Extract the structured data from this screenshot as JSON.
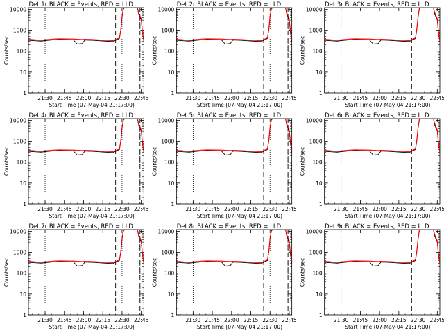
{
  "chart_data": [
    {
      "type": "line",
      "title": "Det 1r BLACK = Events, RED = LLD",
      "xlabel": "Start Time (07-May-04 21:17:00)",
      "ylabel": "Counts/sec",
      "x_ticks": [
        "21:30",
        "21:45",
        "22:00",
        "22:15",
        "22:30",
        "22:45"
      ],
      "y_ticks": [
        "1",
        "10",
        "100",
        "1000",
        "10000"
      ],
      "ylim": [
        1,
        12000
      ],
      "yscale": "log",
      "x_minutes_from_start": [
        0,
        10,
        13,
        18,
        20,
        24,
        35,
        38,
        42,
        44,
        50,
        60,
        66,
        68,
        71,
        72,
        73,
        74,
        75,
        85,
        86,
        88,
        89,
        90
      ],
      "series": [
        {
          "name": "BLACK = Events",
          "color": "#000000",
          "values": [
            330,
            300,
            320,
            340,
            350,
            360,
            350,
            220,
            230,
            340,
            330,
            300,
            290,
            330,
            400,
            1000,
            4000,
            10000,
            12000,
            12000,
            6000,
            3000,
            700,
            300
          ]
        },
        {
          "name": "RED = LLD",
          "color": "#ff0000",
          "values": [
            370,
            330,
            350,
            370,
            380,
            390,
            380,
            370,
            360,
            370,
            360,
            330,
            320,
            360,
            430,
            1100,
            4500,
            11000,
            12000,
            12000,
            7000,
            3500,
            800,
            350
          ]
        }
      ],
      "vlines_dotted": [
        13,
        73,
        87
      ],
      "vlines_dashed": [
        68,
        87
      ]
    },
    {
      "type": "line",
      "title": "Det 2r BLACK = Events, RED = LLD",
      "xlabel": "Start Time (07-May-04 21:17:00)",
      "ylabel": "Counts/sec",
      "x_ticks": [
        "21:30",
        "21:45",
        "22:00",
        "22:15",
        "22:30",
        "22:45"
      ],
      "y_ticks": [
        "1",
        "10",
        "100",
        "1000",
        "10000"
      ],
      "ylim": [
        1,
        12000
      ],
      "yscale": "log",
      "x_minutes_from_start": [
        0,
        10,
        13,
        18,
        20,
        24,
        35,
        38,
        42,
        44,
        50,
        60,
        66,
        68,
        71,
        72,
        73,
        74,
        75,
        85,
        86,
        88,
        89,
        90
      ],
      "series": [
        {
          "name": "BLACK = Events",
          "color": "#000000",
          "values": [
            330,
            300,
            320,
            340,
            350,
            360,
            350,
            220,
            230,
            340,
            330,
            300,
            290,
            330,
            400,
            1000,
            4000,
            10000,
            12000,
            12000,
            6000,
            3000,
            700,
            300
          ]
        },
        {
          "name": "RED = LLD",
          "color": "#ff0000",
          "values": [
            370,
            330,
            350,
            370,
            380,
            390,
            380,
            370,
            360,
            370,
            360,
            330,
            320,
            360,
            430,
            1100,
            4500,
            11000,
            12000,
            12000,
            7000,
            3500,
            800,
            350
          ]
        }
      ],
      "vlines_dotted": [
        13,
        73,
        87
      ],
      "vlines_dashed": [
        68,
        87
      ]
    },
    {
      "type": "line",
      "title": "Det 3r BLACK = Events, RED = LLD",
      "xlabel": "Start Time (07-May-04 21:17:00)",
      "ylabel": "Counts/sec",
      "x_ticks": [
        "21:30",
        "21:45",
        "22:00",
        "22:15",
        "22:30",
        "22:45"
      ],
      "y_ticks": [
        "1",
        "10",
        "100",
        "1000",
        "10000"
      ],
      "ylim": [
        1,
        12000
      ],
      "yscale": "log",
      "x_minutes_from_start": [
        0,
        10,
        13,
        18,
        20,
        24,
        35,
        38,
        42,
        44,
        50,
        60,
        66,
        68,
        71,
        72,
        73,
        74,
        75,
        85,
        86,
        88,
        89,
        90
      ],
      "series": [
        {
          "name": "BLACK = Events",
          "color": "#000000",
          "values": [
            330,
            300,
            320,
            340,
            350,
            360,
            350,
            220,
            230,
            340,
            330,
            300,
            290,
            330,
            400,
            1000,
            4000,
            10000,
            12000,
            12000,
            6000,
            3000,
            700,
            300
          ]
        },
        {
          "name": "RED = LLD",
          "color": "#ff0000",
          "values": [
            370,
            330,
            350,
            370,
            380,
            390,
            380,
            370,
            360,
            370,
            360,
            330,
            320,
            360,
            430,
            1100,
            4500,
            11000,
            12000,
            12000,
            7000,
            3500,
            800,
            350
          ]
        }
      ],
      "vlines_dotted": [
        13,
        73,
        87
      ],
      "vlines_dashed": [
        68,
        87
      ]
    },
    {
      "type": "line",
      "title": "Det 4r BLACK = Events, RED = LLD",
      "xlabel": "Start Time (07-May-04 21:17:00)",
      "ylabel": "Counts/sec",
      "x_ticks": [
        "21:30",
        "21:45",
        "22:00",
        "22:15",
        "22:30",
        "22:45"
      ],
      "y_ticks": [
        "1",
        "10",
        "100",
        "1000",
        "10000"
      ],
      "ylim": [
        1,
        12000
      ],
      "yscale": "log",
      "x_minutes_from_start": [
        0,
        10,
        13,
        18,
        20,
        24,
        35,
        38,
        42,
        44,
        50,
        60,
        66,
        68,
        71,
        72,
        73,
        74,
        75,
        85,
        86,
        88,
        89,
        90
      ],
      "series": [
        {
          "name": "BLACK = Events",
          "color": "#000000",
          "values": [
            330,
            300,
            320,
            340,
            350,
            360,
            350,
            220,
            230,
            340,
            330,
            300,
            290,
            330,
            400,
            1000,
            4000,
            10000,
            12000,
            12000,
            6000,
            3000,
            700,
            300
          ]
        },
        {
          "name": "RED = LLD",
          "color": "#ff0000",
          "values": [
            370,
            330,
            350,
            370,
            380,
            390,
            380,
            370,
            360,
            370,
            360,
            330,
            320,
            360,
            430,
            1100,
            4500,
            11000,
            12000,
            12000,
            7000,
            3500,
            800,
            350
          ]
        }
      ],
      "vlines_dotted": [
        13,
        73,
        87
      ],
      "vlines_dashed": [
        68,
        87
      ]
    },
    {
      "type": "line",
      "title": "Det 5r BLACK = Events, RED = LLD",
      "xlabel": "Start Time (07-May-04 21:17:00)",
      "ylabel": "Counts/sec",
      "x_ticks": [
        "21:30",
        "21:45",
        "22:00",
        "22:15",
        "22:30",
        "22:45"
      ],
      "y_ticks": [
        "1",
        "10",
        "100",
        "1000",
        "10000"
      ],
      "ylim": [
        1,
        12000
      ],
      "yscale": "log",
      "x_minutes_from_start": [
        0,
        10,
        13,
        18,
        20,
        24,
        35,
        38,
        42,
        44,
        50,
        60,
        66,
        68,
        71,
        72,
        73,
        74,
        75,
        85,
        86,
        88,
        89,
        90
      ],
      "series": [
        {
          "name": "BLACK = Events",
          "color": "#000000",
          "values": [
            330,
            300,
            320,
            340,
            350,
            360,
            350,
            220,
            230,
            340,
            330,
            300,
            290,
            330,
            400,
            1000,
            4000,
            10000,
            12000,
            12000,
            6000,
            3000,
            700,
            300
          ]
        },
        {
          "name": "RED = LLD",
          "color": "#ff0000",
          "values": [
            370,
            330,
            350,
            370,
            380,
            390,
            380,
            370,
            360,
            370,
            360,
            330,
            320,
            360,
            430,
            1100,
            4500,
            11000,
            12000,
            12000,
            7000,
            3500,
            800,
            350
          ]
        }
      ],
      "vlines_dotted": [
        13,
        73,
        87
      ],
      "vlines_dashed": [
        68,
        87
      ]
    },
    {
      "type": "line",
      "title": "Det 6r BLACK = Events, RED = LLD",
      "xlabel": "Start Time (07-May-04 21:17:00)",
      "ylabel": "Counts/sec",
      "x_ticks": [
        "21:30",
        "21:45",
        "22:00",
        "22:15",
        "22:30",
        "22:45"
      ],
      "y_ticks": [
        "1",
        "10",
        "100",
        "1000",
        "10000"
      ],
      "ylim": [
        1,
        12000
      ],
      "yscale": "log",
      "x_minutes_from_start": [
        0,
        10,
        13,
        18,
        20,
        24,
        35,
        38,
        42,
        44,
        50,
        60,
        66,
        68,
        71,
        72,
        73,
        74,
        75,
        85,
        86,
        88,
        89,
        90
      ],
      "series": [
        {
          "name": "BLACK = Events",
          "color": "#000000",
          "values": [
            330,
            300,
            320,
            340,
            350,
            360,
            350,
            220,
            230,
            340,
            330,
            300,
            290,
            330,
            400,
            1000,
            4000,
            10000,
            12000,
            12000,
            6000,
            3000,
            700,
            300
          ]
        },
        {
          "name": "RED = LLD",
          "color": "#ff0000",
          "values": [
            370,
            330,
            350,
            370,
            380,
            390,
            380,
            370,
            360,
            370,
            360,
            330,
            320,
            360,
            430,
            1100,
            4500,
            11000,
            12000,
            12000,
            7000,
            3500,
            800,
            350
          ]
        }
      ],
      "vlines_dotted": [
        13,
        73,
        87
      ],
      "vlines_dashed": [
        68,
        87
      ]
    },
    {
      "type": "line",
      "title": "Det 7r BLACK = Events, RED = LLD",
      "xlabel": "Start Time (07-May-04 21:17:00)",
      "ylabel": "Counts/sec",
      "x_ticks": [
        "21:30",
        "21:45",
        "22:00",
        "22:15",
        "22:30",
        "22:45"
      ],
      "y_ticks": [
        "1",
        "10",
        "100",
        "1000",
        "10000"
      ],
      "ylim": [
        1,
        12000
      ],
      "yscale": "log",
      "x_minutes_from_start": [
        0,
        10,
        13,
        18,
        20,
        24,
        35,
        38,
        42,
        44,
        50,
        60,
        66,
        68,
        71,
        72,
        73,
        74,
        75,
        85,
        86,
        88,
        89,
        90
      ],
      "series": [
        {
          "name": "BLACK = Events",
          "color": "#000000",
          "values": [
            330,
            300,
            320,
            340,
            350,
            360,
            350,
            220,
            230,
            340,
            330,
            300,
            290,
            330,
            400,
            1000,
            4000,
            10000,
            12000,
            12000,
            6000,
            3000,
            700,
            300
          ]
        },
        {
          "name": "RED = LLD",
          "color": "#ff0000",
          "values": [
            370,
            330,
            350,
            370,
            380,
            390,
            380,
            370,
            360,
            370,
            360,
            330,
            320,
            360,
            430,
            1100,
            4500,
            11000,
            12000,
            12000,
            7000,
            3500,
            800,
            350
          ]
        }
      ],
      "vlines_dotted": [
        13,
        73,
        87
      ],
      "vlines_dashed": [
        68,
        87
      ]
    },
    {
      "type": "line",
      "title": "Det 8r BLACK = Events, RED = LLD",
      "xlabel": "Start Time (07-May-04 21:17:00)",
      "ylabel": "Counts/sec",
      "x_ticks": [
        "21:30",
        "21:45",
        "22:00",
        "22:15",
        "22:30",
        "22:45"
      ],
      "y_ticks": [
        "1",
        "10",
        "100",
        "1000",
        "10000"
      ],
      "ylim": [
        1,
        12000
      ],
      "yscale": "log",
      "x_minutes_from_start": [
        0,
        10,
        13,
        18,
        20,
        24,
        35,
        38,
        42,
        44,
        50,
        60,
        66,
        68,
        71,
        72,
        73,
        74,
        75,
        85,
        86,
        88,
        89,
        90
      ],
      "series": [
        {
          "name": "BLACK = Events",
          "color": "#000000",
          "values": [
            330,
            300,
            320,
            340,
            350,
            360,
            350,
            220,
            230,
            340,
            330,
            300,
            290,
            330,
            400,
            1000,
            4000,
            10000,
            12000,
            12000,
            6000,
            3000,
            700,
            300
          ]
        },
        {
          "name": "RED = LLD",
          "color": "#ff0000",
          "values": [
            370,
            330,
            350,
            370,
            380,
            390,
            380,
            370,
            360,
            370,
            360,
            330,
            320,
            360,
            430,
            1100,
            4500,
            11000,
            12000,
            12000,
            7000,
            3500,
            800,
            350
          ]
        }
      ],
      "vlines_dotted": [
        13,
        73,
        87
      ],
      "vlines_dashed": [
        68,
        87
      ]
    },
    {
      "type": "line",
      "title": "Det 9r BLACK = Events, RED = LLD",
      "xlabel": "Start Time (07-May-04 21:17:00)",
      "ylabel": "Counts/sec",
      "x_ticks": [
        "21:30",
        "21:45",
        "22:00",
        "22:15",
        "22:30",
        "22:45"
      ],
      "y_ticks": [
        "1",
        "10",
        "100",
        "1000",
        "10000"
      ],
      "ylim": [
        1,
        12000
      ],
      "yscale": "log",
      "x_minutes_from_start": [
        0,
        10,
        13,
        18,
        20,
        24,
        35,
        38,
        42,
        44,
        50,
        60,
        66,
        68,
        71,
        72,
        73,
        74,
        75,
        85,
        86,
        88,
        89,
        90
      ],
      "series": [
        {
          "name": "BLACK = Events",
          "color": "#000000",
          "values": [
            330,
            300,
            320,
            340,
            350,
            360,
            350,
            220,
            230,
            340,
            330,
            300,
            290,
            330,
            400,
            1000,
            4000,
            10000,
            12000,
            12000,
            6000,
            3000,
            700,
            300
          ]
        },
        {
          "name": "RED = LLD",
          "color": "#ff0000",
          "values": [
            370,
            330,
            350,
            370,
            380,
            390,
            380,
            370,
            360,
            370,
            360,
            330,
            320,
            360,
            430,
            1100,
            4500,
            11000,
            12000,
            12000,
            7000,
            3500,
            800,
            350
          ]
        }
      ],
      "vlines_dotted": [
        13,
        73,
        87
      ],
      "vlines_dashed": [
        68,
        87
      ]
    }
  ]
}
